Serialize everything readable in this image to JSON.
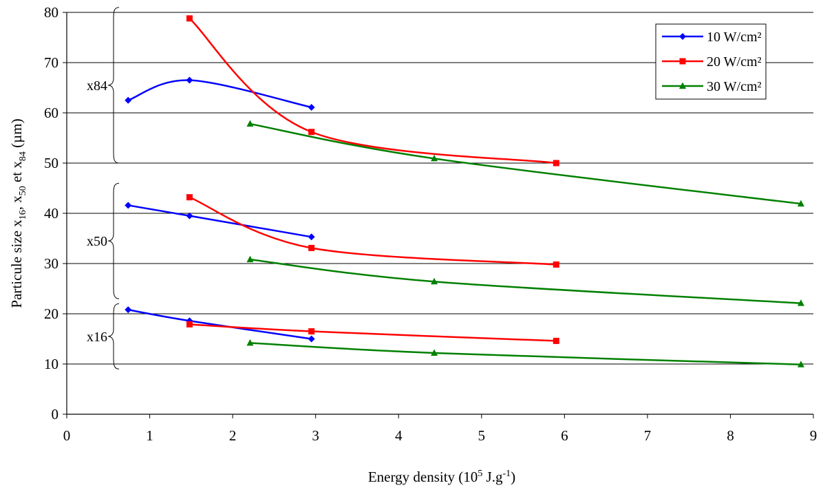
{
  "chart_data": {
    "type": "line",
    "xlabel": {
      "main": "Energy density (10",
      "sup": "5",
      "mid": " J.g",
      "sup2": "-1",
      "end": ")"
    },
    "ylabel": {
      "p1": "Particule size x",
      "s1": "16",
      "p2": ", x",
      "s2": "50",
      "p3": " et x",
      "s3": "84",
      "p4": " (µm)"
    },
    "xlim": [
      0,
      9
    ],
    "ylim": [
      0,
      80
    ],
    "xticks": [
      "0",
      "1",
      "2",
      "3",
      "4",
      "5",
      "6",
      "7",
      "8",
      "9"
    ],
    "yticks": [
      "0",
      "10",
      "20",
      "30",
      "40",
      "50",
      "60",
      "70",
      "80"
    ],
    "grid": "horizontal",
    "legend_position": "top-right",
    "series": [
      {
        "name": "10 W/cm²",
        "color": "#0000ff",
        "marker": "diamond",
        "groups": [
          {
            "x": [
              0.74,
              1.48,
              2.95
            ],
            "y": [
              62.5,
              66.5,
              61.1
            ]
          },
          {
            "x": [
              0.74,
              1.48,
              2.95
            ],
            "y": [
              41.6,
              39.5,
              35.3
            ]
          },
          {
            "x": [
              0.74,
              1.48,
              2.95
            ],
            "y": [
              20.8,
              18.6,
              15.0
            ]
          }
        ]
      },
      {
        "name": "20 W/cm²",
        "color": "#ff0000",
        "marker": "square",
        "groups": [
          {
            "x": [
              1.48,
              2.95,
              5.9
            ],
            "y": [
              78.8,
              56.2,
              50.0
            ]
          },
          {
            "x": [
              1.48,
              2.95,
              5.9
            ],
            "y": [
              43.2,
              33.1,
              29.8
            ]
          },
          {
            "x": [
              1.48,
              2.95,
              5.9
            ],
            "y": [
              17.9,
              16.5,
              14.6
            ]
          }
        ]
      },
      {
        "name": "30 W/cm²",
        "color": "#008000",
        "marker": "triangle",
        "groups": [
          {
            "x": [
              2.21,
              4.43,
              8.85
            ],
            "y": [
              57.8,
              50.9,
              41.9
            ]
          },
          {
            "x": [
              2.21,
              4.43,
              8.85
            ],
            "y": [
              30.8,
              26.4,
              22.1
            ]
          },
          {
            "x": [
              2.21,
              4.43,
              8.85
            ],
            "y": [
              14.2,
              12.2,
              9.9
            ]
          }
        ]
      }
    ],
    "annotations": [
      {
        "label": "x84",
        "range": [
          50,
          81
        ]
      },
      {
        "label": "x50",
        "range": [
          23,
          46
        ]
      },
      {
        "label": "x16",
        "range": [
          9,
          22
        ]
      }
    ]
  }
}
